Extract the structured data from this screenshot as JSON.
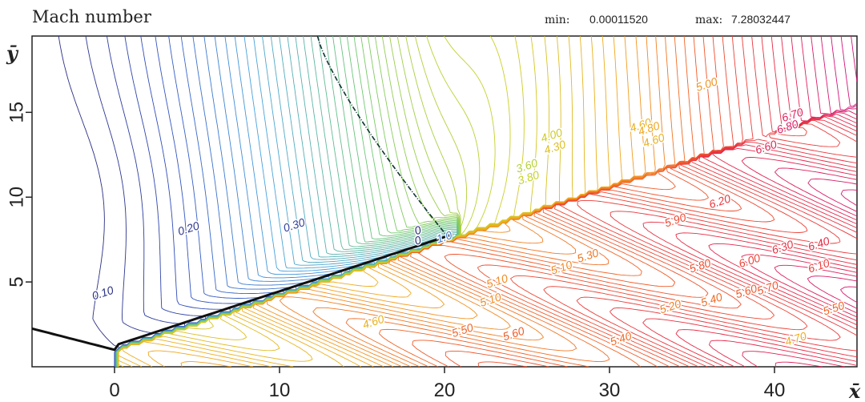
{
  "header": {
    "title": "Mach number",
    "min_label": "min:",
    "min_value": "0.00011520",
    "max_label": "max:",
    "max_value": "7.28032447"
  },
  "chart_data": {
    "type": "contour",
    "title": "Mach number",
    "xlabel": "x̄",
    "ylabel": "ȳ",
    "xlim": [
      -5,
      45
    ],
    "ylim": [
      0,
      19.5
    ],
    "x_ticks": [
      0,
      10,
      20,
      30,
      40
    ],
    "x_tick_labels": [
      "0",
      "10",
      "20",
      "30",
      "40"
    ],
    "y_ticks": [
      5,
      10,
      15
    ],
    "y_tick_labels": [
      "5",
      "10",
      "15"
    ],
    "field_min": 0.0001152,
    "field_max": 7.28032447,
    "contour_labels": [
      {
        "text": "0.10",
        "x": -0.7,
        "y": 4.3
      },
      {
        "text": "0.20",
        "x": 4.5,
        "y": 8.1
      },
      {
        "text": "0.30",
        "x": 10.9,
        "y": 8.3
      },
      {
        "text": "0",
        "x": 18.4,
        "y": 8.0
      },
      {
        "text": "0",
        "x": 18.4,
        "y": 7.4
      },
      {
        "text": "1.0",
        "x": 20.0,
        "y": 7.6
      },
      {
        "text": "3.60",
        "x": 25.0,
        "y": 11.8
      },
      {
        "text": "3.80",
        "x": 25.1,
        "y": 11.1
      },
      {
        "text": "4.00",
        "x": 26.5,
        "y": 13.6
      },
      {
        "text": "4.30",
        "x": 26.7,
        "y": 12.9
      },
      {
        "text": "4.60",
        "x": 31.9,
        "y": 14.2
      },
      {
        "text": "4.80",
        "x": 32.4,
        "y": 14.0
      },
      {
        "text": "4.60",
        "x": 32.7,
        "y": 13.3
      },
      {
        "text": "5.00",
        "x": 35.9,
        "y": 16.6
      },
      {
        "text": "5.10",
        "x": 27.1,
        "y": 5.8
      },
      {
        "text": "5.20",
        "x": 33.7,
        "y": 3.5
      },
      {
        "text": "5.30",
        "x": 28.7,
        "y": 6.5
      },
      {
        "text": "5.90",
        "x": 34.0,
        "y": 8.6
      },
      {
        "text": "6.20",
        "x": 36.7,
        "y": 9.7
      },
      {
        "text": "6.60",
        "x": 39.5,
        "y": 12.9
      },
      {
        "text": "6.70",
        "x": 41.1,
        "y": 14.8
      },
      {
        "text": "6.80",
        "x": 40.8,
        "y": 14.1
      },
      {
        "text": "6.40",
        "x": 42.7,
        "y": 7.2
      },
      {
        "text": "6.30",
        "x": 40.5,
        "y": 7.0
      },
      {
        "text": "6.00",
        "x": 38.5,
        "y": 6.2
      },
      {
        "text": "6.10",
        "x": 42.7,
        "y": 5.9
      },
      {
        "text": "5.80",
        "x": 35.5,
        "y": 5.9
      },
      {
        "text": "5.70",
        "x": 39.6,
        "y": 4.6
      },
      {
        "text": "5.60",
        "x": 38.3,
        "y": 4.4
      },
      {
        "text": "5.40",
        "x": 36.2,
        "y": 3.9
      },
      {
        "text": "5.50",
        "x": 43.6,
        "y": 3.4
      },
      {
        "text": "4.70",
        "x": 41.3,
        "y": 1.6
      },
      {
        "text": "5.40",
        "x": 30.7,
        "y": 1.6
      },
      {
        "text": "5.60",
        "x": 24.2,
        "y": 1.9
      },
      {
        "text": "5.50",
        "x": 21.1,
        "y": 2.1
      },
      {
        "text": "4.60",
        "x": 15.7,
        "y": 2.6
      },
      {
        "text": "5.10",
        "x": 22.8,
        "y": 3.9
      },
      {
        "text": "5.10",
        "x": 23.2,
        "y": 5.0
      }
    ]
  }
}
